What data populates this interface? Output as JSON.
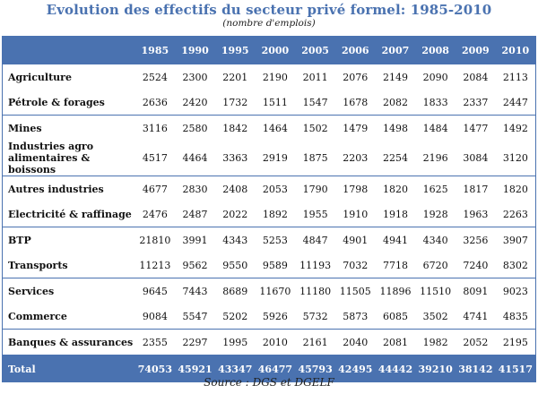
{
  "title": "Evolution des effectifs du secteur privé formel: 1985-2010",
  "subtitle": "(nombre d'emplois)",
  "source": "Source : DGS et DGELF",
  "columns": [
    "1985",
    "1990",
    "1995",
    "2000",
    "2005",
    "2006",
    "2007",
    "2008",
    "2009",
    "2010"
  ],
  "rows": [
    {
      "label": "Agriculture",
      "values": [
        "2524",
        "2300",
        "2201",
        "2190",
        "2011",
        "2076",
        "2149",
        "2090",
        "2084",
        "2113"
      ]
    },
    {
      "label": "Pétrole & forages",
      "values": [
        "2636",
        "2420",
        "1732",
        "1511",
        "1547",
        "1678",
        "2082",
        "1833",
        "2337",
        "2447"
      ]
    },
    {
      "label": "Mines",
      "values": [
        "3116",
        "2580",
        "1842",
        "1464",
        "1502",
        "1479",
        "1498",
        "1484",
        "1477",
        "1492"
      ]
    },
    {
      "label": "Industries agro",
      "label2": "alimentaires & boissons",
      "values": [
        "4517",
        "4464",
        "3363",
        "2919",
        "1875",
        "2203",
        "2254",
        "2196",
        "3084",
        "3120"
      ]
    },
    {
      "label": "Autres industries",
      "values": [
        "4677",
        "2830",
        "2408",
        "2053",
        "1790",
        "1798",
        "1820",
        "1625",
        "1817",
        "1820"
      ]
    },
    {
      "label": "Electricité & raffinage",
      "values": [
        "2476",
        "2487",
        "2022",
        "1892",
        "1955",
        "1910",
        "1918",
        "1928",
        "1963",
        "2263"
      ]
    },
    {
      "label": "BTP",
      "values": [
        "21810",
        "3991",
        "4343",
        "5253",
        "4847",
        "4901",
        "4941",
        "4340",
        "3256",
        "3907"
      ]
    },
    {
      "label": "Transports",
      "values": [
        "11213",
        "9562",
        "9550",
        "9589",
        "11193",
        "7032",
        "7718",
        "6720",
        "7240",
        "8302"
      ]
    },
    {
      "label": "Services",
      "values": [
        "9645",
        "7443",
        "8689",
        "11670",
        "11180",
        "11505",
        "11896",
        "11510",
        "8091",
        "9023"
      ]
    },
    {
      "label": "Commerce",
      "values": [
        "9084",
        "5547",
        "5202",
        "5926",
        "5732",
        "5873",
        "6085",
        "3502",
        "4741",
        "4835"
      ]
    },
    {
      "label": "Banques & assurances",
      "values": [
        "2355",
        "2297",
        "1995",
        "2010",
        "2161",
        "2040",
        "2081",
        "1982",
        "2052",
        "2195"
      ]
    }
  ],
  "total": {
    "label": "Total",
    "values": [
      "74053",
      "45921",
      "43347",
      "46477",
      "45793",
      "42495",
      "44442",
      "39210",
      "38142",
      "41517"
    ]
  }
}
